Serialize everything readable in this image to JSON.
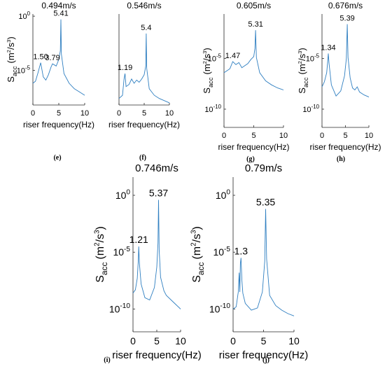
{
  "chart_data": [
    {
      "id": "e",
      "type": "line",
      "title": "0.494m/s",
      "panel_label": "(e)",
      "xlabel": "riser frequency(Hz)",
      "ylabel": "S",
      "ylabel_sub": "acc",
      "ylabel_unit": "(m",
      "ylabel_unit_tail": "/s",
      "exp_unit": "2",
      "exp_tail": "3",
      "ylabel_close": ")",
      "x_ticks": [
        "0",
        "5",
        "10"
      ],
      "y_ticks": [
        {
          "base": "10",
          "exp": "0"
        },
        {
          "base": "10",
          "exp": "-5"
        }
      ],
      "xlim": [
        0,
        10
      ],
      "ylog": [
        -8.2,
        0.2
      ],
      "ytick_values": [
        0,
        -5
      ],
      "peaks": [
        {
          "x": 1.5,
          "label": "1.50"
        },
        {
          "x": 3.79,
          "label": "3.79"
        },
        {
          "x": 5.41,
          "label": "5.41"
        }
      ],
      "series": [
        {
          "x": [
            0,
            0.5,
            1.0,
            1.5,
            2.0,
            2.5,
            3.0,
            3.5,
            3.79,
            4.5,
            5.0,
            5.3,
            5.41,
            5.5,
            6.0,
            7.0,
            8.0,
            9.0,
            10.0
          ],
          "y": [
            -6.2,
            -6.0,
            -5.2,
            -4.3,
            -5.6,
            -5.9,
            -5.4,
            -4.7,
            -4.4,
            -4.6,
            -4.0,
            -3.2,
            -0.3,
            -3.5,
            -5.3,
            -6.2,
            -6.7,
            -7.0,
            -7.3
          ]
        }
      ]
    },
    {
      "id": "f",
      "type": "line",
      "title": "0.546m/s",
      "panel_label": "(f)",
      "xlabel": "riser frequency(Hz)",
      "x_ticks": [
        "0",
        "5",
        "10"
      ],
      "xlim": [
        0,
        10
      ],
      "ylog": [
        -8.2,
        0.2
      ],
      "peaks": [
        {
          "x": 1.19,
          "label": "1.19"
        },
        {
          "x": 5.4,
          "label": "5.4"
        }
      ],
      "series": [
        {
          "x": [
            0,
            0.7,
            1.0,
            1.19,
            1.4,
            2.0,
            2.5,
            3.0,
            3.5,
            4.0,
            4.5,
            5.0,
            5.3,
            5.4,
            5.5,
            6.0,
            7.0,
            8.0,
            9.0,
            10.0
          ],
          "y": [
            -7.6,
            -7.3,
            -5.8,
            -5.3,
            -6.5,
            -6.3,
            -5.8,
            -6.2,
            -5.9,
            -6.1,
            -5.8,
            -5.4,
            -4.6,
            -1.6,
            -4.8,
            -6.7,
            -7.3,
            -7.6,
            -7.8,
            -8.0
          ]
        }
      ]
    },
    {
      "id": "g",
      "type": "line",
      "title": "0.605m/s",
      "panel_label": "(g)",
      "xlabel": "riser frequency(Hz)",
      "x_ticks": [
        "0",
        "5",
        "10"
      ],
      "y_ticks": [
        {
          "base": "10",
          "exp": "-5"
        },
        {
          "base": "10",
          "exp": "-10"
        }
      ],
      "xlim": [
        0,
        10
      ],
      "ylog": [
        -11.8,
        -0.6
      ],
      "ytick_values": [
        -5,
        -10
      ],
      "peaks": [
        {
          "x": 1.47,
          "label": "1.47"
        },
        {
          "x": 5.31,
          "label": "5.31"
        }
      ],
      "series": [
        {
          "x": [
            0,
            0.5,
            1.0,
            1.47,
            2.0,
            2.5,
            3.0,
            3.5,
            4.0,
            4.5,
            5.0,
            5.2,
            5.31,
            5.45,
            6.0,
            7.0,
            8.0,
            9.0,
            10.0
          ],
          "y": [
            -6.4,
            -6.2,
            -6.0,
            -5.3,
            -5.6,
            -5.4,
            -5.9,
            -5.7,
            -5.5,
            -5.1,
            -4.8,
            -4.0,
            -2.2,
            -4.9,
            -6.4,
            -7.2,
            -7.6,
            -7.9,
            -8.1
          ]
        }
      ]
    },
    {
      "id": "h",
      "type": "line",
      "title": "0.676m/s",
      "panel_label": "(h)",
      "xlabel": "riser frequency(Hz)",
      "x_ticks": [
        "0",
        "5",
        "10"
      ],
      "y_ticks": [
        {
          "base": "10",
          "exp": "-5"
        },
        {
          "base": "10",
          "exp": "-10"
        }
      ],
      "xlim": [
        0,
        10
      ],
      "ylog": [
        -11.8,
        -0.6
      ],
      "ytick_values": [
        -5,
        -10
      ],
      "peaks": [
        {
          "x": 1.34,
          "label": "1.34"
        },
        {
          "x": 5.39,
          "label": "5.39"
        }
      ],
      "series": [
        {
          "x": [
            0,
            0.5,
            1.0,
            1.2,
            1.34,
            1.5,
            2.0,
            3.0,
            4.0,
            4.8,
            5.2,
            5.39,
            5.55,
            6.0,
            6.5,
            7.0,
            7.5,
            8.0,
            9.0,
            10.0
          ],
          "y": [
            -7.8,
            -7.3,
            -6.4,
            -5.4,
            -4.5,
            -5.5,
            -7.6,
            -8.7,
            -8.2,
            -6.7,
            -5.0,
            -1.6,
            -4.9,
            -6.9,
            -7.9,
            -8.1,
            -7.8,
            -8.3,
            -8.6,
            -8.8
          ]
        }
      ]
    },
    {
      "id": "i",
      "type": "line",
      "title": "0.746m/s",
      "panel_label": "(i)",
      "xlabel": "riser frequency(Hz)",
      "x_ticks": [
        "0",
        "5",
        "10"
      ],
      "y_ticks": [
        {
          "base": "10",
          "exp": "0"
        },
        {
          "base": "10",
          "exp": "-5"
        },
        {
          "base": "10",
          "exp": "-10"
        }
      ],
      "xlim": [
        0,
        10
      ],
      "ylog": [
        -12.0,
        1.6
      ],
      "ytick_values": [
        0,
        -5,
        -10
      ],
      "peaks": [
        {
          "x": 1.21,
          "label": "1.21"
        },
        {
          "x": 5.37,
          "label": "5.37"
        }
      ],
      "series": [
        {
          "x": [
            0,
            0.5,
            0.9,
            1.1,
            1.21,
            1.35,
            1.7,
            2.5,
            3.5,
            4.5,
            5.0,
            5.25,
            5.37,
            5.5,
            5.8,
            6.5,
            7.0,
            8.0,
            9.0,
            10.0
          ],
          "y": [
            -8.6,
            -8.3,
            -7.3,
            -5.8,
            -4.5,
            -6.0,
            -7.8,
            -9.0,
            -9.2,
            -8.1,
            -6.3,
            -4.2,
            -0.4,
            -4.8,
            -7.2,
            -8.4,
            -8.8,
            -9.2,
            -9.6,
            -10.0
          ]
        }
      ]
    },
    {
      "id": "j",
      "type": "line",
      "title": "0.79m/s",
      "panel_label": "(j)",
      "xlabel": "riser frequency(Hz)",
      "x_ticks": [
        "0",
        "5",
        "10"
      ],
      "y_ticks": [
        {
          "base": "10",
          "exp": "0"
        },
        {
          "base": "10",
          "exp": "-5"
        },
        {
          "base": "10",
          "exp": "-10"
        }
      ],
      "xlim": [
        0,
        10
      ],
      "ylog": [
        -12.0,
        1.6
      ],
      "ytick_values": [
        0,
        -5,
        -10
      ],
      "peaks": [
        {
          "x": 1.3,
          "label": "1.3"
        },
        {
          "x": 5.35,
          "label": "5.35"
        }
      ],
      "series": [
        {
          "x": [
            0,
            0.5,
            0.85,
            1.0,
            1.1,
            1.2,
            1.3,
            1.45,
            1.6,
            2.0,
            3.0,
            4.0,
            4.8,
            5.2,
            5.35,
            5.5,
            6.0,
            7.0,
            8.0,
            9.0,
            10.0
          ],
          "y": [
            -10.0,
            -9.8,
            -8.5,
            -6.8,
            -8.5,
            -6.0,
            -5.5,
            -7.5,
            -8.6,
            -9.5,
            -10.1,
            -9.9,
            -8.5,
            -5.8,
            -1.2,
            -5.6,
            -8.8,
            -9.7,
            -10.1,
            -10.4,
            -10.6
          ]
        }
      ]
    }
  ]
}
